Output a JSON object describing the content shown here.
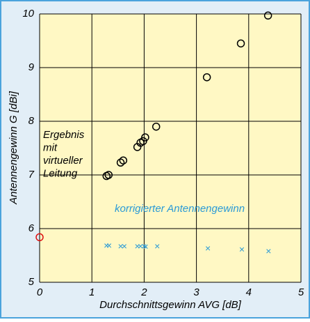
{
  "chart_data": {
    "type": "scatter",
    "xlabel": "Durchschnittsgewinn AVG [dB]",
    "ylabel": "Antennengewinn G [dBi]",
    "xlim": [
      0,
      5
    ],
    "xticks": [
      0,
      1,
      2,
      3,
      4,
      5
    ],
    "ylim": [
      5,
      10
    ],
    "yticks": [
      5,
      6,
      7,
      8,
      9,
      10
    ],
    "grid": true,
    "series": [
      {
        "marker": "circle",
        "color": "#000000",
        "x": [
          1.28,
          1.32,
          1.55,
          1.6,
          1.87,
          1.93,
          1.98,
          2.02,
          2.23,
          3.2,
          3.85,
          4.37
        ],
        "values": [
          6.98,
          7.0,
          7.23,
          7.27,
          7.52,
          7.6,
          7.63,
          7.7,
          7.9,
          8.82,
          9.45,
          9.97
        ]
      },
      {
        "marker": "circle",
        "color": "#dd1111",
        "x": [
          0
        ],
        "values": [
          5.84
        ]
      },
      {
        "marker": "x",
        "color": "#2a9ad6",
        "x": [
          1.28,
          1.33,
          1.55,
          1.62,
          1.87,
          1.93,
          2.0,
          2.03,
          2.25,
          3.22,
          3.87,
          4.38
        ],
        "values": [
          5.67,
          5.67,
          5.66,
          5.66,
          5.66,
          5.66,
          5.66,
          5.65,
          5.66,
          5.62,
          5.6,
          5.57
        ]
      }
    ],
    "annotations": [
      {
        "lines": [
          "Ergebnis",
          "mit",
          "virtueller",
          "Leitung"
        ],
        "color": "#000000"
      },
      {
        "lines": [
          "korrigierter Antennengewinn"
        ],
        "color": "#2a9ad6"
      }
    ]
  }
}
